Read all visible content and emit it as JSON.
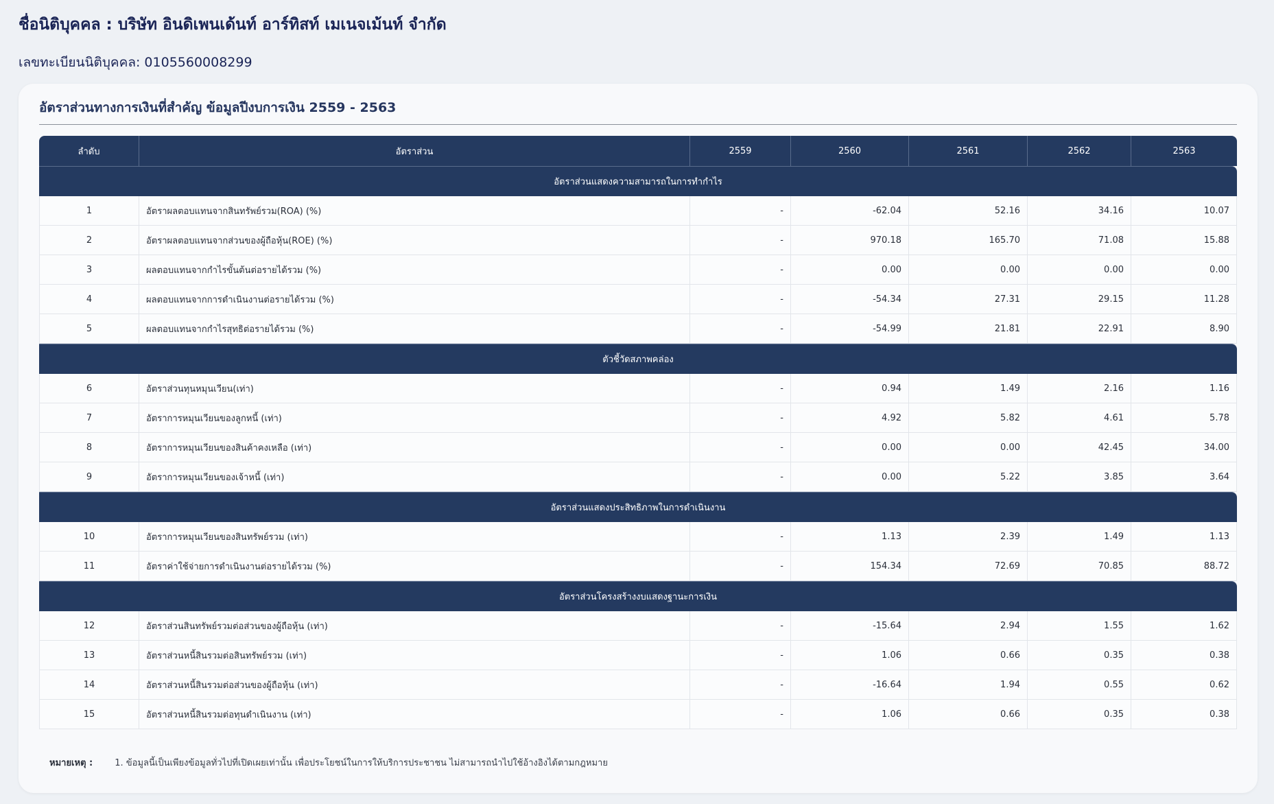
{
  "header": {
    "company": "ชื่อนิติบุคคล : บริษัท อินดิเพนเด้นท์ อาร์ทิสท์ เมเนจเม้นท์ จำกัด",
    "registration": "เลขทะเบียนนิติบุคคล: 0105560008299"
  },
  "card": {
    "title": "อัตราส่วนทางการเงินที่สำคัญ ข้อมูลปีงบการเงิน 2559 - 2563"
  },
  "table": {
    "columns": [
      "ลำดับ",
      "อัตราส่วน",
      "2559",
      "2560",
      "2561",
      "2562",
      "2563"
    ],
    "sections": [
      {
        "title": "อัตราส่วนแสดงความสามารถในการทำกำไร",
        "rows": [
          {
            "no": "1",
            "name": "อัตราผลตอบแทนจากสินทรัพย์รวม(ROA) (%)",
            "values": [
              "-",
              "-62.04",
              "52.16",
              "34.16",
              "10.07"
            ]
          },
          {
            "no": "2",
            "name": "อัตราผลตอบแทนจากส่วนของผู้ถือหุ้น(ROE) (%)",
            "values": [
              "-",
              "970.18",
              "165.70",
              "71.08",
              "15.88"
            ]
          },
          {
            "no": "3",
            "name": "ผลตอบแทนจากกำไรขั้นต้นต่อรายได้รวม (%)",
            "values": [
              "-",
              "0.00",
              "0.00",
              "0.00",
              "0.00"
            ]
          },
          {
            "no": "4",
            "name": "ผลตอบแทนจากการดำเนินงานต่อรายได้รวม (%)",
            "values": [
              "-",
              "-54.34",
              "27.31",
              "29.15",
              "11.28"
            ]
          },
          {
            "no": "5",
            "name": "ผลตอบแทนจากกำไรสุทธิต่อรายได้รวม (%)",
            "values": [
              "-",
              "-54.99",
              "21.81",
              "22.91",
              "8.90"
            ]
          }
        ]
      },
      {
        "title": "ตัวชี้วัดสภาพคล่อง",
        "rows": [
          {
            "no": "6",
            "name": "อัตราส่วนทุนหมุนเวียน(เท่า)",
            "values": [
              "-",
              "0.94",
              "1.49",
              "2.16",
              "1.16"
            ]
          },
          {
            "no": "7",
            "name": "อัตราการหมุนเวียนของลูกหนี้ (เท่า)",
            "values": [
              "-",
              "4.92",
              "5.82",
              "4.61",
              "5.78"
            ]
          },
          {
            "no": "8",
            "name": "อัตราการหมุนเวียนของสินค้าคงเหลือ (เท่า)",
            "values": [
              "-",
              "0.00",
              "0.00",
              "42.45",
              "34.00"
            ]
          },
          {
            "no": "9",
            "name": "อัตราการหมุนเวียนของเจ้าหนี้ (เท่า)",
            "values": [
              "-",
              "0.00",
              "5.22",
              "3.85",
              "3.64"
            ]
          }
        ]
      },
      {
        "title": "อัตราส่วนแสดงประสิทธิภาพในการดำเนินงาน",
        "rows": [
          {
            "no": "10",
            "name": "อัตราการหมุนเวียนของสินทรัพย์รวม (เท่า)",
            "values": [
              "-",
              "1.13",
              "2.39",
              "1.49",
              "1.13"
            ]
          },
          {
            "no": "11",
            "name": "อัตราค่าใช้จ่ายการดำเนินงานต่อรายได้รวม (%)",
            "values": [
              "-",
              "154.34",
              "72.69",
              "70.85",
              "88.72"
            ]
          }
        ]
      },
      {
        "title": "อัตราส่วนโครงสร้างงบแสดงฐานะการเงิน",
        "rows": [
          {
            "no": "12",
            "name": "อัตราส่วนสินทรัพย์รวมต่อส่วนของผู้ถือหุ้น (เท่า)",
            "values": [
              "-",
              "-15.64",
              "2.94",
              "1.55",
              "1.62"
            ]
          },
          {
            "no": "13",
            "name": "อัตราส่วนหนี้สินรวมต่อสินทรัพย์รวม (เท่า)",
            "values": [
              "-",
              "1.06",
              "0.66",
              "0.35",
              "0.38"
            ]
          },
          {
            "no": "14",
            "name": "อัตราส่วนหนี้สินรวมต่อส่วนของผู้ถือหุ้น (เท่า)",
            "values": [
              "-",
              "-16.64",
              "1.94",
              "0.55",
              "0.62"
            ]
          },
          {
            "no": "15",
            "name": "อัตราส่วนหนี้สินรวมต่อทุนดำเนินงาน (เท่า)",
            "values": [
              "-",
              "1.06",
              "0.66",
              "0.35",
              "0.38"
            ]
          }
        ]
      }
    ]
  },
  "note": {
    "label": "หมายเหตุ :",
    "text": "1. ข้อมูลนี้เป็นเพียงข้อมูลทั่วไปที่เปิดเผยเท่านั้น เพื่อประโยชน์ในการให้บริการประชาชน ไม่สามารถนำไปใช้อ้างอิงได้ตามกฎหมาย"
  }
}
